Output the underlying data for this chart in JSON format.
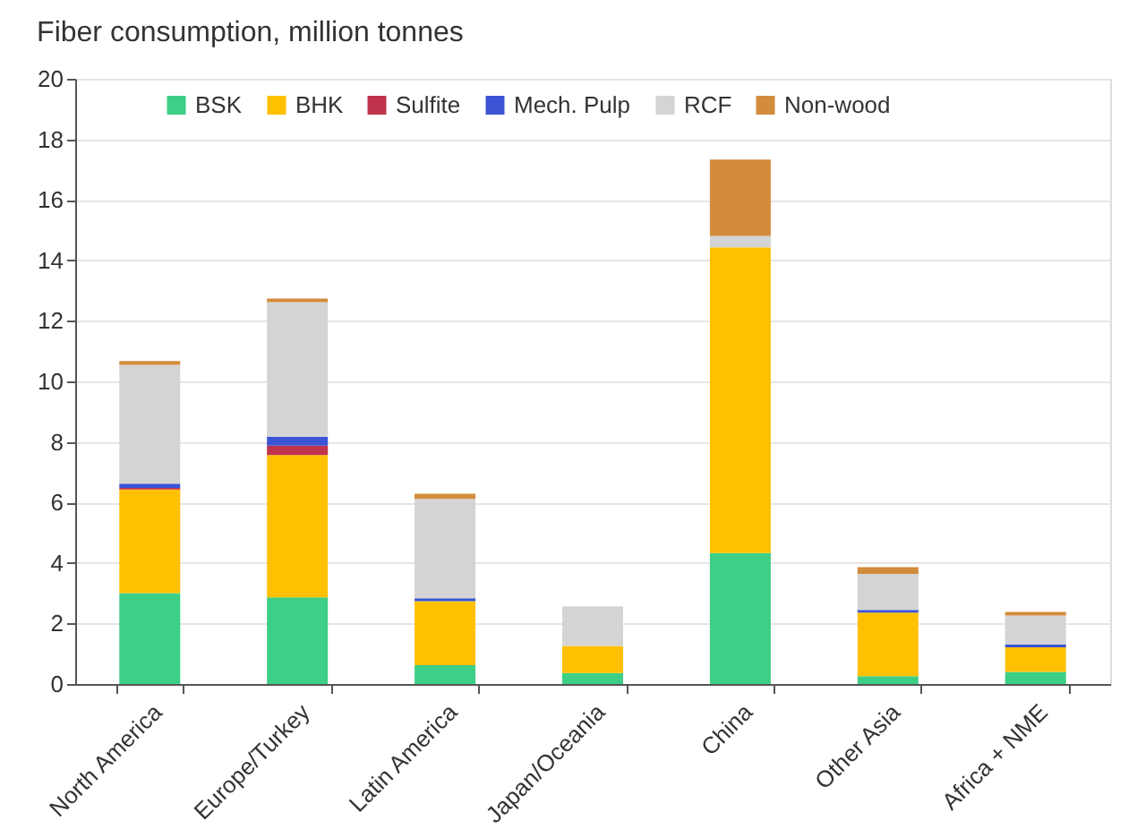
{
  "chart_data": {
    "type": "bar",
    "title": "Fiber consumption, million tonnes",
    "stacked": true,
    "categories": [
      "North America",
      "Europe/Turkey",
      "Latin America",
      "Japan/Oceania",
      "China",
      "Other Asia",
      "Africa + NME"
    ],
    "series": [
      {
        "name": "BSK",
        "color": "#3ccf85",
        "values": [
          3.0,
          2.86,
          0.62,
          0.36,
          4.33,
          0.26,
          0.4
        ]
      },
      {
        "name": "BHK",
        "color": "#ffc000",
        "values": [
          3.43,
          4.71,
          2.12,
          0.9,
          10.1,
          2.1,
          0.81
        ]
      },
      {
        "name": "Sulfite",
        "color": "#c0334d",
        "values": [
          0.05,
          0.31,
          null,
          null,
          null,
          null,
          null
        ]
      },
      {
        "name": "Mech. Pulp",
        "color": "#3b54d4",
        "values": [
          0.14,
          0.29,
          0.09,
          null,
          null,
          0.09,
          0.1
        ]
      },
      {
        "name": "RCF",
        "color": "#d4d4d4",
        "values": [
          3.93,
          4.45,
          3.29,
          1.31,
          0.38,
          1.19,
          0.95
        ]
      },
      {
        "name": "Non-wood",
        "color": "#d38b3c",
        "values": [
          0.12,
          0.12,
          0.17,
          null,
          2.52,
          0.22,
          0.12
        ]
      }
    ],
    "ylim": [
      0,
      20
    ],
    "yticks": [
      0,
      2,
      4,
      6,
      8,
      10,
      12,
      14,
      16,
      18,
      20
    ],
    "grid": "y",
    "legend": "top"
  }
}
